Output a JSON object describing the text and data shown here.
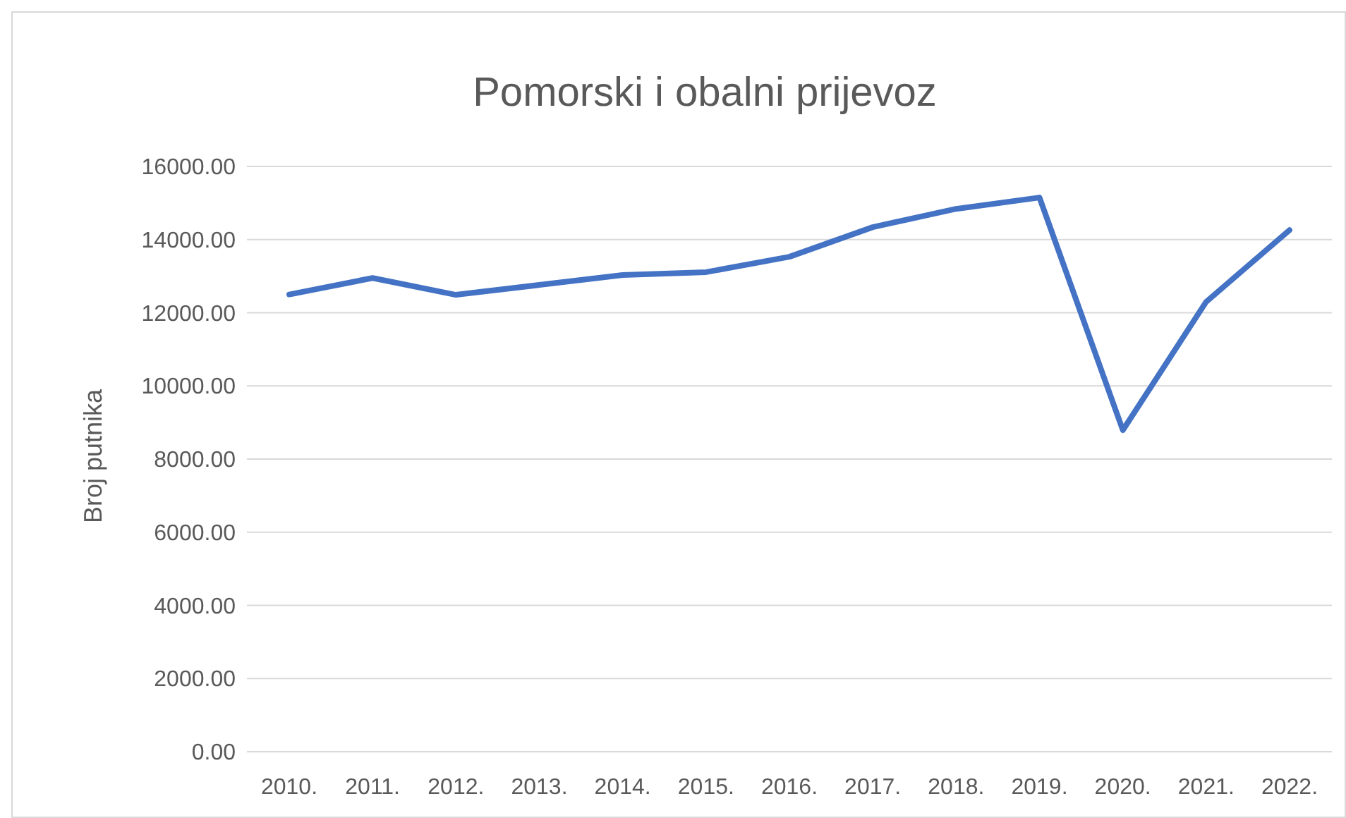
{
  "chart_data": {
    "type": "line",
    "title": "Pomorski i obalni prijevoz",
    "ylabel": "Broj putnika",
    "categories": [
      "2010.",
      "2011.",
      "2012.",
      "2013.",
      "2014.",
      "2015.",
      "2016.",
      "2017.",
      "2018.",
      "2019.",
      "2020.",
      "2021.",
      "2022."
    ],
    "series": [
      {
        "color": "#4472c4",
        "values": [
          12500,
          12950,
          12490,
          12760,
          13030,
          13110,
          13530,
          14340,
          14840,
          15150,
          8790,
          12300,
          14260
        ]
      }
    ],
    "ylim": [
      0,
      16000
    ],
    "yticks": [
      {
        "value": 0,
        "label": "0.00"
      },
      {
        "value": 2000,
        "label": "2000.00"
      },
      {
        "value": 4000,
        "label": "4000.00"
      },
      {
        "value": 6000,
        "label": "6000.00"
      },
      {
        "value": 8000,
        "label": "8000.00"
      },
      {
        "value": 10000,
        "label": "10000.00"
      },
      {
        "value": 12000,
        "label": "12000.00"
      },
      {
        "value": 14000,
        "label": "14000.00"
      },
      {
        "value": 16000,
        "label": "16000.00"
      }
    ],
    "grid": "y",
    "marker": "none",
    "line_style": "solid"
  }
}
